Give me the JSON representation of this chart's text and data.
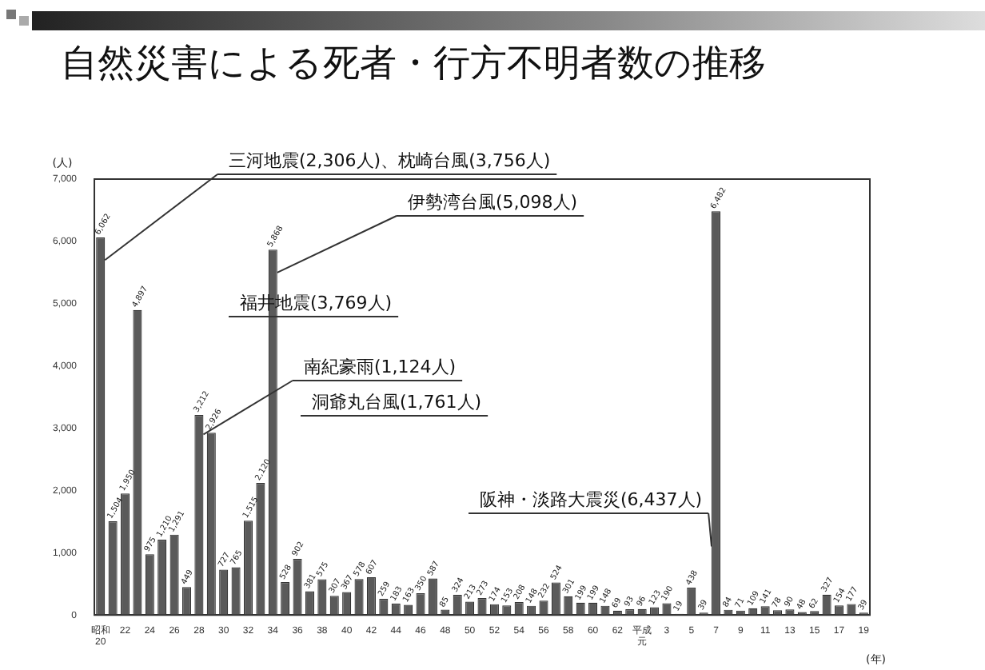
{
  "chart_data": {
    "type": "bar",
    "title": "自然災害による死者・行方不明者数の推移",
    "ylabel": "(人)",
    "xlabel": "(年)",
    "categories": [
      "昭和20",
      null,
      "22",
      null,
      "24",
      null,
      "26",
      null,
      "28",
      null,
      "30",
      null,
      "32",
      null,
      "34",
      null,
      "36",
      null,
      "38",
      null,
      "40",
      null,
      "42",
      null,
      "44",
      null,
      "46",
      null,
      "48",
      null,
      "50",
      null,
      "52",
      null,
      "54",
      null,
      "56",
      null,
      "58",
      null,
      "60",
      null,
      "62",
      null,
      "平成元",
      null,
      "3",
      null,
      "5",
      null,
      "7",
      null,
      "9",
      null,
      "11",
      null,
      "13",
      null,
      "15",
      null,
      "17",
      null,
      "19"
    ],
    "values": [
      6062,
      1504,
      1950,
      4897,
      975,
      1210,
      1291,
      449,
      3212,
      2926,
      727,
      765,
      1515,
      2120,
      5868,
      528,
      902,
      381,
      575,
      307,
      367,
      578,
      607,
      259,
      183,
      163,
      350,
      587,
      85,
      324,
      213,
      273,
      174,
      153,
      208,
      148,
      232,
      524,
      301,
      199,
      199,
      148,
      69,
      93,
      96,
      123,
      190,
      19,
      438,
      39,
      6482,
      84,
      71,
      109,
      141,
      78,
      90,
      48,
      62,
      327,
      154,
      177,
      39
    ],
    "value_labels": [
      "6,062",
      "1,504",
      "1,950",
      "4,897",
      "975",
      "1,210",
      "1,291",
      "449",
      "3,212",
      "2,926",
      "727",
      "765",
      "1,515",
      "2,120",
      "5,868",
      "528",
      "902",
      "381",
      "575",
      "307",
      "367",
      "578",
      "607",
      "259",
      "183",
      "163",
      "350",
      "587",
      "85",
      "324",
      "213",
      "273",
      "174",
      "153",
      "208",
      "148",
      "232",
      "524",
      "301",
      "199",
      "199",
      "148",
      "69",
      "93",
      "96",
      "123",
      "190",
      "19",
      "438",
      "39",
      "6,482",
      "84",
      "71",
      "109",
      "141",
      "78",
      "90",
      "48",
      "62",
      "327",
      "154",
      "177",
      "39"
    ],
    "color": "#5a5a5a",
    "ylim": [
      0,
      7000
    ],
    "yticks": [
      0,
      {
        "value": 1000,
        "label": "1,000"
      },
      {
        "value": 2000,
        "label": "2,000"
      },
      {
        "value": 3000,
        "label": "3,000"
      },
      {
        "value": 4000,
        "label": "4,000"
      },
      {
        "value": 5000,
        "label": "5,000"
      },
      {
        "value": 6000,
        "label": "6,000"
      },
      {
        "value": 7000,
        "label": "7,000"
      }
    ],
    "grid": false,
    "legend": false,
    "annotations": [
      {
        "text": "三河地震(2,306人)、枕崎台風(3,756人)",
        "x": "昭和20",
        "y": 5700
      },
      {
        "text": "伊勢湾台風(5,098人)",
        "x": "34",
        "y": 5500
      },
      "福井地震(3,769人)",
      {
        "text": "南紀豪雨(1,124人)",
        "x": "28",
        "y": 2900
      },
      "洞爺丸台風(1,761人)",
      {
        "text": "阪神・淡路大震災(6,437人)",
        "x": "7",
        "y": 1100
      }
    ]
  }
}
